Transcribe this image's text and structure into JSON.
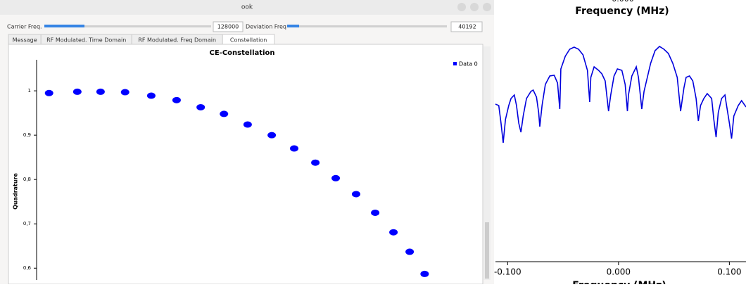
{
  "window": {
    "title": "ook",
    "controls": [
      {
        "label": "Carrier Freq.",
        "value": 128000
      },
      {
        "label": "Deviation Freq",
        "value": 40192
      }
    ],
    "tabs": [
      "Message",
      "RF Modulated. Time Domain",
      "RF Modulated. Freq Domain",
      "Constellation"
    ],
    "active_tab": 3
  },
  "chart_data": [
    {
      "type": "scatter",
      "title": "CE-Constellation",
      "y_label": "Quadrature",
      "color": "#0000ff",
      "series": [
        {
          "name": "Data 0",
          "color": "#0000ff",
          "x": [
            -0.097,
            -0.029,
            0.027,
            0.086,
            0.149,
            0.21,
            0.268,
            0.324,
            0.381,
            0.439,
            0.493,
            0.544,
            0.593,
            0.642,
            0.688,
            0.732,
            0.771,
            0.807
          ],
          "values": [
            0.995,
            0.998,
            0.998,
            0.997,
            0.989,
            0.979,
            0.963,
            0.948,
            0.924,
            0.9,
            0.87,
            0.838,
            0.803,
            0.767,
            0.725,
            0.681,
            0.637,
            0.587
          ]
        }
      ],
      "xlim": [
        -0.127,
        0.864
      ],
      "ylim": [
        0.575,
        1.07
      ],
      "yticks": [
        1,
        {
          "value": 0.9,
          "label": "0,9"
        },
        {
          "value": 0.8,
          "label": "0,8"
        },
        {
          "value": 0.7,
          "label": "0,7"
        },
        {
          "value": 0.6,
          "label": "0,6"
        }
      ],
      "legend": "top-right"
    },
    {
      "type": "line",
      "title": "Frequency (MHz)",
      "top_cut_label": "0.000",
      "x_label": "Frequency (MHz)",
      "color": "#0000dd",
      "x": [
        -0.111,
        -0.108,
        -0.106,
        -0.104,
        -0.102,
        -0.099,
        -0.097,
        -0.094,
        -0.092,
        -0.09,
        -0.088,
        -0.086,
        -0.083,
        -0.079,
        -0.077,
        -0.074,
        -0.072,
        -0.071,
        -0.069,
        -0.066,
        -0.062,
        -0.058,
        -0.055,
        -0.053,
        -0.052,
        -0.048,
        -0.044,
        -0.04,
        -0.036,
        -0.032,
        -0.028,
        -0.026,
        -0.025,
        -0.022,
        -0.018,
        -0.015,
        -0.012,
        -0.009,
        -0.007,
        -0.004,
        -0.001,
        0.003,
        0.006,
        0.008,
        0.009,
        0.012,
        0.016,
        0.018,
        0.021,
        0.023,
        0.026,
        0.029,
        0.033,
        0.037,
        0.041,
        0.045,
        0.049,
        0.053,
        0.056,
        0.059,
        0.061,
        0.064,
        0.067,
        0.07,
        0.072,
        0.074,
        0.077,
        0.08,
        0.084,
        0.086,
        0.088,
        0.09,
        0.093,
        0.096,
        0.097,
        0.1,
        0.102,
        0.104,
        0.108,
        0.111,
        0.115
      ],
      "values": [
        224,
        222,
        197,
        169,
        202,
        222,
        232,
        237,
        222,
        197,
        184,
        207,
        232,
        242,
        244,
        234,
        212,
        192,
        222,
        252,
        264,
        265,
        254,
        217,
        274,
        292,
        302,
        305,
        302,
        294,
        272,
        227,
        262,
        277,
        272,
        267,
        257,
        214,
        237,
        264,
        274,
        272,
        252,
        214,
        237,
        264,
        277,
        262,
        217,
        242,
        262,
        282,
        300,
        306,
        302,
        296,
        282,
        262,
        214,
        247,
        262,
        264,
        257,
        232,
        200,
        222,
        232,
        239,
        232,
        202,
        177,
        212,
        232,
        237,
        227,
        197,
        175,
        207,
        222,
        229,
        220
      ],
      "xlim": [
        -0.111,
        0.115
      ],
      "ylim": [
        0,
        340
      ],
      "xticks": [
        {
          "value": -0.1,
          "label": "-0.100"
        },
        {
          "value": 0,
          "label": "0.000"
        },
        {
          "value": 0.1,
          "label": "0.100"
        }
      ]
    }
  ]
}
